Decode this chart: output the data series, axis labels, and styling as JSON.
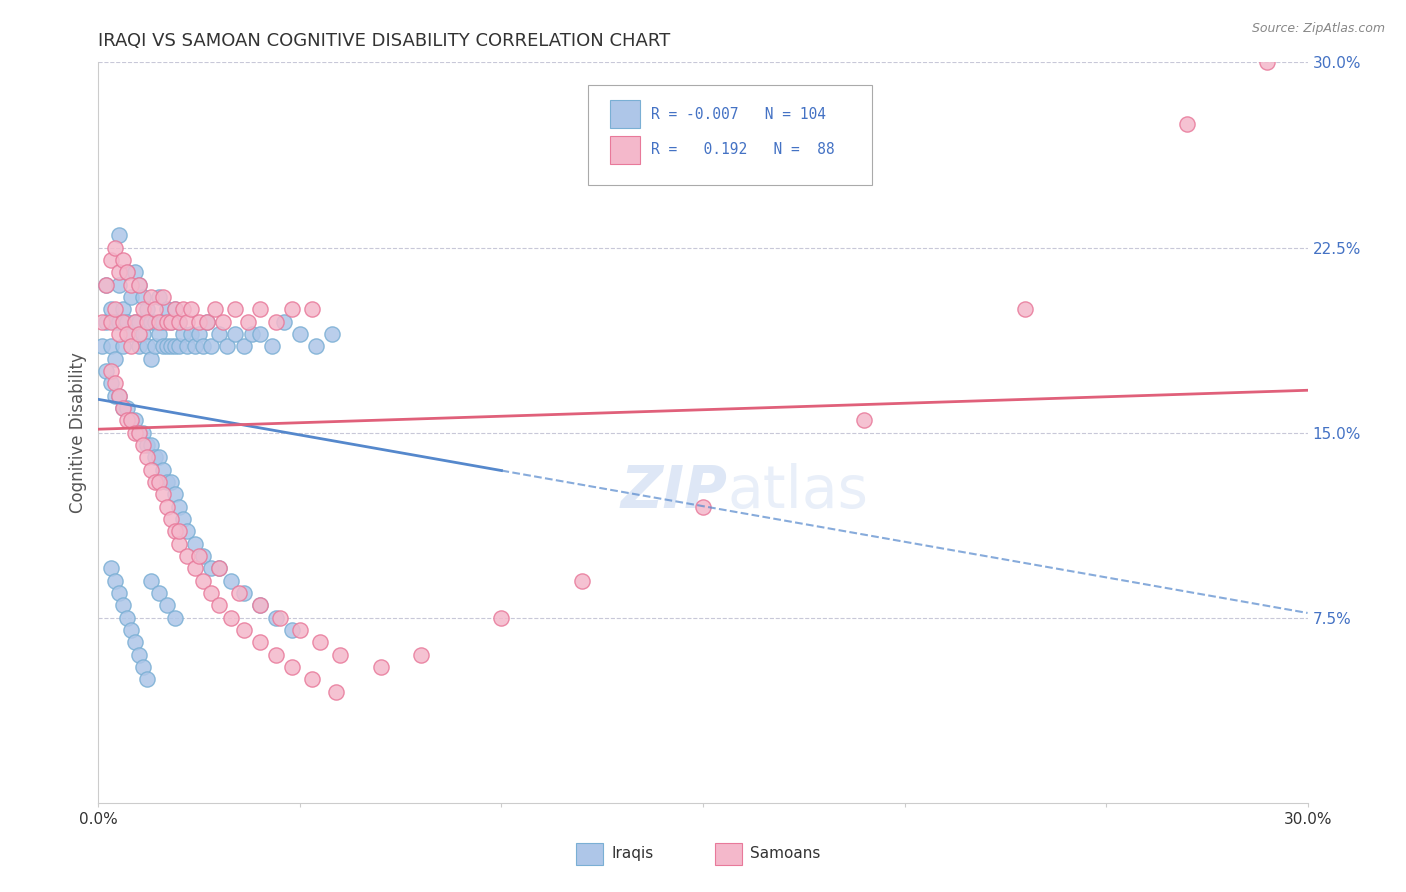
{
  "title": "IRAQI VS SAMOAN COGNITIVE DISABILITY CORRELATION CHART",
  "source": "Source: ZipAtlas.com",
  "ylabel": "Cognitive Disability",
  "xlim": [
    0.0,
    0.3
  ],
  "ylim": [
    0.0,
    0.3
  ],
  "xticks": [
    0.0,
    0.05,
    0.1,
    0.15,
    0.2,
    0.25,
    0.3
  ],
  "xtick_labels": [
    "0.0%",
    "",
    "",
    "",
    "",
    "",
    "30.0%"
  ],
  "yticks_right": [
    0.075,
    0.15,
    0.225,
    0.3
  ],
  "ytick_labels_right": [
    "7.5%",
    "15.0%",
    "22.5%",
    "30.0%"
  ],
  "color_iraqi": "#aec6e8",
  "color_samoan": "#f4b8cb",
  "color_iraqi_edge": "#7aafd4",
  "color_samoan_edge": "#e8799a",
  "color_iraqi_line": "#5588cc",
  "color_samoan_line": "#e0607a",
  "background": "#ffffff",
  "grid_color": "#c8c8d8",
  "watermark_color": "#c8d8f0",
  "title_color": "#333333",
  "right_tick_color": "#4472c4",
  "source_color": "#888888",
  "iraqi_x": [
    0.001,
    0.002,
    0.002,
    0.003,
    0.003,
    0.004,
    0.004,
    0.005,
    0.005,
    0.005,
    0.006,
    0.006,
    0.007,
    0.007,
    0.008,
    0.008,
    0.009,
    0.009,
    0.01,
    0.01,
    0.01,
    0.011,
    0.011,
    0.012,
    0.012,
    0.013,
    0.013,
    0.014,
    0.014,
    0.015,
    0.015,
    0.016,
    0.016,
    0.017,
    0.017,
    0.018,
    0.018,
    0.019,
    0.019,
    0.02,
    0.02,
    0.021,
    0.022,
    0.023,
    0.024,
    0.025,
    0.026,
    0.027,
    0.028,
    0.03,
    0.032,
    0.034,
    0.036,
    0.038,
    0.04,
    0.043,
    0.046,
    0.05,
    0.054,
    0.058,
    0.002,
    0.003,
    0.004,
    0.005,
    0.006,
    0.007,
    0.008,
    0.009,
    0.01,
    0.011,
    0.012,
    0.013,
    0.014,
    0.015,
    0.016,
    0.017,
    0.018,
    0.019,
    0.02,
    0.021,
    0.022,
    0.024,
    0.026,
    0.028,
    0.03,
    0.033,
    0.036,
    0.04,
    0.044,
    0.048,
    0.003,
    0.004,
    0.005,
    0.006,
    0.007,
    0.008,
    0.009,
    0.01,
    0.011,
    0.012,
    0.013,
    0.015,
    0.017,
    0.019
  ],
  "iraqi_y": [
    0.185,
    0.21,
    0.195,
    0.2,
    0.185,
    0.195,
    0.18,
    0.23,
    0.21,
    0.195,
    0.2,
    0.185,
    0.215,
    0.195,
    0.205,
    0.19,
    0.215,
    0.195,
    0.21,
    0.195,
    0.185,
    0.205,
    0.19,
    0.2,
    0.185,
    0.195,
    0.18,
    0.195,
    0.185,
    0.205,
    0.19,
    0.195,
    0.185,
    0.2,
    0.185,
    0.195,
    0.185,
    0.2,
    0.185,
    0.195,
    0.185,
    0.19,
    0.185,
    0.19,
    0.185,
    0.19,
    0.185,
    0.195,
    0.185,
    0.19,
    0.185,
    0.19,
    0.185,
    0.19,
    0.19,
    0.185,
    0.195,
    0.19,
    0.185,
    0.19,
    0.175,
    0.17,
    0.165,
    0.165,
    0.16,
    0.16,
    0.155,
    0.155,
    0.15,
    0.15,
    0.145,
    0.145,
    0.14,
    0.14,
    0.135,
    0.13,
    0.13,
    0.125,
    0.12,
    0.115,
    0.11,
    0.105,
    0.1,
    0.095,
    0.095,
    0.09,
    0.085,
    0.08,
    0.075,
    0.07,
    0.095,
    0.09,
    0.085,
    0.08,
    0.075,
    0.07,
    0.065,
    0.06,
    0.055,
    0.05,
    0.09,
    0.085,
    0.08,
    0.075
  ],
  "samoan_x": [
    0.001,
    0.002,
    0.003,
    0.003,
    0.004,
    0.004,
    0.005,
    0.005,
    0.006,
    0.006,
    0.007,
    0.007,
    0.008,
    0.008,
    0.009,
    0.01,
    0.01,
    0.011,
    0.012,
    0.013,
    0.014,
    0.015,
    0.016,
    0.017,
    0.018,
    0.019,
    0.02,
    0.021,
    0.022,
    0.023,
    0.025,
    0.027,
    0.029,
    0.031,
    0.034,
    0.037,
    0.04,
    0.044,
    0.048,
    0.053,
    0.003,
    0.004,
    0.005,
    0.006,
    0.007,
    0.008,
    0.009,
    0.01,
    0.011,
    0.012,
    0.013,
    0.014,
    0.015,
    0.016,
    0.017,
    0.018,
    0.019,
    0.02,
    0.022,
    0.024,
    0.026,
    0.028,
    0.03,
    0.033,
    0.036,
    0.04,
    0.044,
    0.048,
    0.053,
    0.059,
    0.02,
    0.025,
    0.03,
    0.035,
    0.04,
    0.045,
    0.05,
    0.055,
    0.06,
    0.07,
    0.08,
    0.1,
    0.12,
    0.15,
    0.19,
    0.23,
    0.27,
    0.29
  ],
  "samoan_y": [
    0.195,
    0.21,
    0.22,
    0.195,
    0.225,
    0.2,
    0.215,
    0.19,
    0.22,
    0.195,
    0.215,
    0.19,
    0.21,
    0.185,
    0.195,
    0.21,
    0.19,
    0.2,
    0.195,
    0.205,
    0.2,
    0.195,
    0.205,
    0.195,
    0.195,
    0.2,
    0.195,
    0.2,
    0.195,
    0.2,
    0.195,
    0.195,
    0.2,
    0.195,
    0.2,
    0.195,
    0.2,
    0.195,
    0.2,
    0.2,
    0.175,
    0.17,
    0.165,
    0.16,
    0.155,
    0.155,
    0.15,
    0.15,
    0.145,
    0.14,
    0.135,
    0.13,
    0.13,
    0.125,
    0.12,
    0.115,
    0.11,
    0.105,
    0.1,
    0.095,
    0.09,
    0.085,
    0.08,
    0.075,
    0.07,
    0.065,
    0.06,
    0.055,
    0.05,
    0.045,
    0.11,
    0.1,
    0.095,
    0.085,
    0.08,
    0.075,
    0.07,
    0.065,
    0.06,
    0.055,
    0.06,
    0.075,
    0.09,
    0.12,
    0.155,
    0.2,
    0.275,
    0.3
  ]
}
